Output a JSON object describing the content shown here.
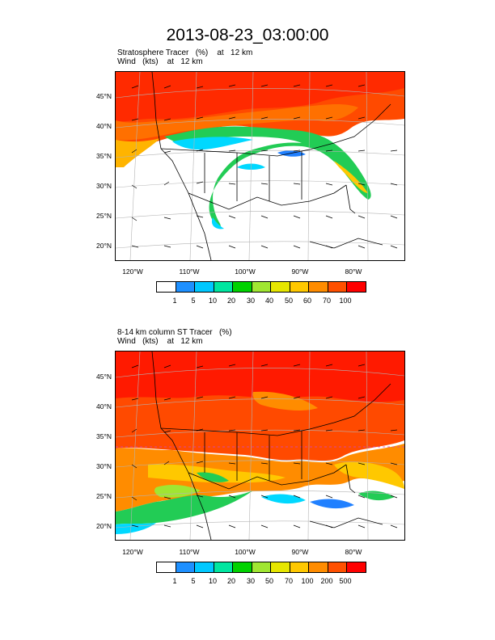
{
  "page_title": "2013-08-23_03:00:00",
  "panels": [
    {
      "title_line1": "Stratosphere Tracer   (%)    at   12 km",
      "title_line2": "Wind   (kts)    at   12 km",
      "lat_labels": [
        "45°N",
        "40°N",
        "35°N",
        "30°N",
        "25°N",
        "20°N"
      ],
      "lon_labels": [
        "120°W",
        "110°W",
        "100°W",
        "90°W",
        "80°W"
      ],
      "colorbar_labels": [
        "1",
        "5",
        "10",
        "20",
        "30",
        "40",
        "50",
        "60",
        "70",
        "100"
      ]
    },
    {
      "title_line1": "8-14 km column ST Tracer   (%)",
      "title_line2": "Wind   (kts)    at   12 km",
      "lat_labels": [
        "45°N",
        "40°N",
        "35°N",
        "30°N",
        "25°N",
        "20°N"
      ],
      "lon_labels": [
        "120°W",
        "110°W",
        "100°W",
        "90°W",
        "80°W"
      ],
      "colorbar_labels": [
        "1",
        "5",
        "10",
        "20",
        "30",
        "50",
        "70",
        "100",
        "200",
        "500"
      ]
    }
  ],
  "colorbar_colors": [
    "#ffffff",
    "#1e90ff",
    "#00c8ff",
    "#00e6a0",
    "#00d200",
    "#a0e632",
    "#e6e600",
    "#ffc800",
    "#ff8c00",
    "#ff5000",
    "#ff0000"
  ],
  "map_colors": {
    "high": "#ff4a00",
    "mid": "#ff8c00",
    "yellow": "#ffc800",
    "green": "#22cc55",
    "cyan": "#00d8ff",
    "blue": "#2080ff",
    "border": "#000000",
    "grid": "#b4b4b4"
  }
}
